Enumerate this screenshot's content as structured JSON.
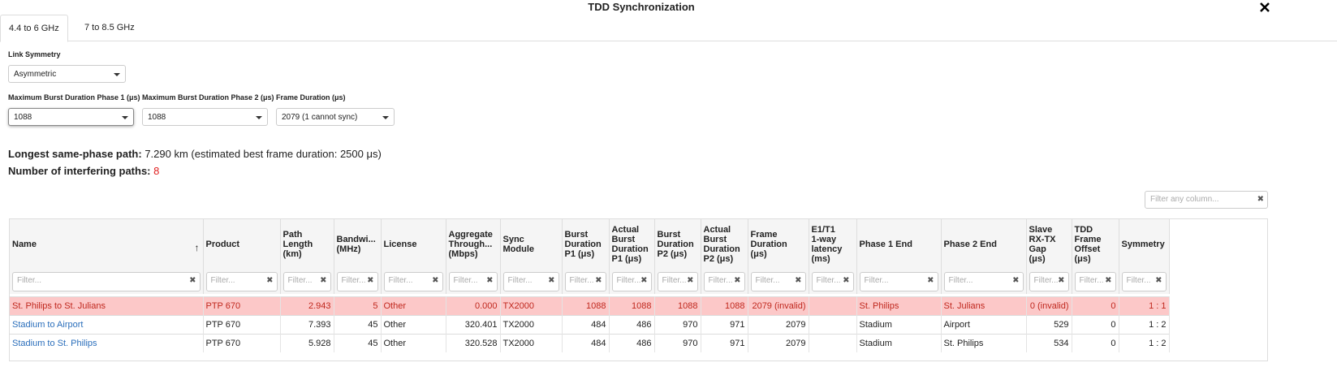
{
  "header": {
    "title": "TDD Synchronization"
  },
  "tabs": {
    "active": 0,
    "items": [
      "4.4 to 6 GHz",
      "7 to 8.5 GHz"
    ]
  },
  "form": {
    "link_symmetry": {
      "label": "Link Symmetry",
      "value": "Asymmetric"
    },
    "burst_p1": {
      "label": "Maximum Burst Duration Phase 1 (μs)",
      "value": "1088"
    },
    "burst_p2": {
      "label": "Maximum Burst Duration Phase 2 (μs)",
      "value": "1088"
    },
    "frame": {
      "label": "Frame Duration (μs)",
      "value": "2079 (1 cannot sync)"
    }
  },
  "summary": {
    "longest_label": "Longest same-phase path:",
    "longest_text": "7.290 km (estimated best frame duration: 2500 μs)",
    "interfering_label": "Number of interfering paths:",
    "interfering_value": "8"
  },
  "table": {
    "filter_any": "Filter any column...",
    "filter_placeholder": "Filter...",
    "columns": [
      "Name",
      "Product",
      "Path Length (km)",
      "Bandwi... (MHz)",
      "License",
      "Aggregate Through... (Mbps)",
      "Sync Module",
      "Burst Duration P1 (μs)",
      "Actual Burst Duration P1 (μs)",
      "Burst Duration P2 (μs)",
      "Actual Burst Duration P2 (μs)",
      "Frame Duration (μs)",
      "E1/T1 1-way latency (ms)",
      "Phase 1 End",
      "Phase 2 End",
      "Slave RX-TX Gap (μs)",
      "TDD Frame Offset (μs)",
      "Symmetry"
    ],
    "rows": [
      {
        "error": true,
        "cells": [
          "St. Philips to St. Julians",
          "PTP 670",
          "2.943",
          "5",
          "Other",
          "0.000",
          "TX2000",
          "1088",
          "1088",
          "1088",
          "1088",
          "2079 (invalid)",
          null,
          "St. Philips",
          "St. Julians",
          "0 (invalid)",
          "0",
          "1 : 1"
        ]
      },
      {
        "error": false,
        "cells": [
          "Stadium to Airport",
          "PTP 670",
          "7.393",
          "45",
          "Other",
          "320.401",
          "TX2000",
          "484",
          "486",
          "970",
          "971",
          "2079",
          null,
          "Stadium",
          "Airport",
          "529",
          "0",
          "1 : 2"
        ]
      },
      {
        "error": false,
        "cells": [
          "Stadium to St. Philips",
          "PTP 670",
          "5.928",
          "45",
          "Other",
          "320.528",
          "TX2000",
          "484",
          "486",
          "970",
          "971",
          "2079",
          null,
          "Stadium",
          "St. Philips",
          "534",
          "0",
          "1 : 2"
        ]
      }
    ]
  }
}
